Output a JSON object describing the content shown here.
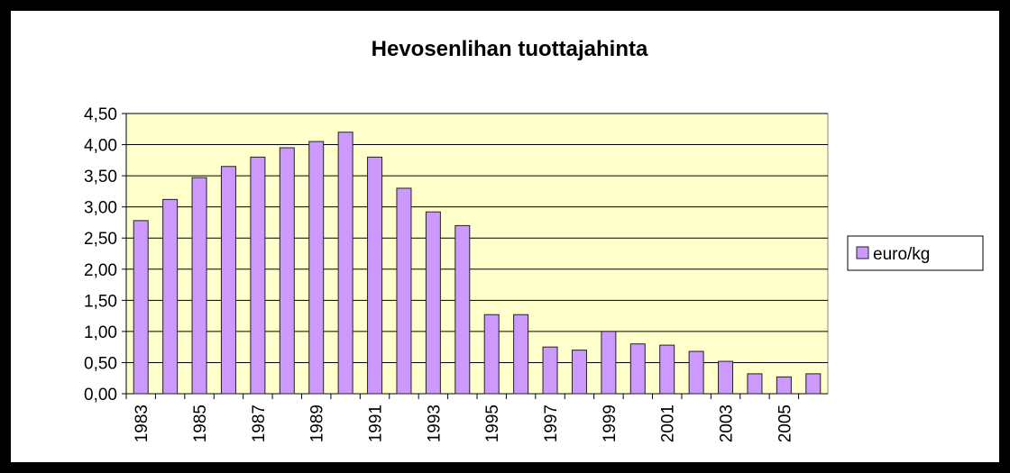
{
  "chart_data": {
    "type": "bar",
    "title": "Hevosenlihan tuottajahinta",
    "categories": [
      "1983",
      null,
      "1985",
      null,
      "1987",
      null,
      "1989",
      null,
      "1991",
      null,
      "1993",
      null,
      "1995",
      null,
      "1997",
      null,
      "1999",
      null,
      "2001",
      null,
      "2003",
      null,
      "2005",
      null
    ],
    "series": [
      {
        "name": "euro/kg",
        "color": "#cc99ff",
        "values": [
          2.78,
          3.12,
          3.47,
          3.65,
          3.8,
          3.95,
          4.05,
          4.2,
          3.8,
          3.3,
          2.92,
          2.7,
          1.27,
          1.27,
          0.75,
          0.7,
          1.0,
          0.8,
          0.78,
          0.68,
          0.52,
          0.32,
          0.27,
          0.32
        ]
      }
    ],
    "ylim": [
      0,
      4.5
    ],
    "yticks": [
      {
        "value": 0,
        "label": "0,00"
      },
      {
        "value": 0.5,
        "label": "0,50"
      },
      {
        "value": 1,
        "label": "1,00"
      },
      {
        "value": 1.5,
        "label": "1,50"
      },
      {
        "value": 2,
        "label": "2,00"
      },
      {
        "value": 2.5,
        "label": "2,50"
      },
      {
        "value": 3,
        "label": "3,00"
      },
      {
        "value": 3.5,
        "label": "3,50"
      },
      {
        "value": 4,
        "label": "4,00"
      },
      {
        "value": 4.5,
        "label": "4,50"
      }
    ],
    "grid": true,
    "legend": "right"
  }
}
